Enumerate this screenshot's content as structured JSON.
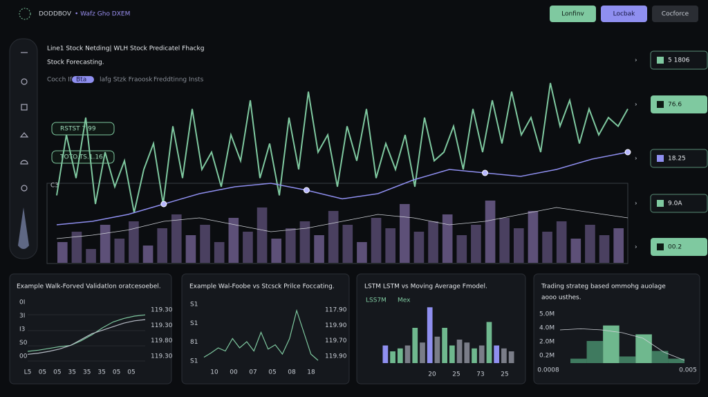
{
  "header": {
    "brand": "DODDBOV",
    "subtitle": "• Wafz Gho DXEM",
    "buttons": [
      "Lonfinv",
      "Locbak",
      "Cocforce"
    ]
  },
  "main": {
    "title": "Line1 Stock Netding| WLH Stock Predicatel Fhackg",
    "subtitle": "Stock Forecasting.",
    "legend": [
      "Cocch Ife:",
      "Bta",
      "lafg Stzk Fraoosk",
      "Freddtinng Insts"
    ],
    "badges": [
      "RSTST 7 99",
      "TOTO.TS.1.16"
    ],
    "axis_label": "C3",
    "stats": [
      "5 1806",
      "76.6",
      "18.25",
      "9.0A",
      "00.2"
    ],
    "ylim": [
      0,
      110
    ],
    "green": [
      35,
      70,
      45,
      80,
      30,
      60,
      40,
      55,
      25,
      50,
      65,
      30,
      75,
      45,
      85,
      50,
      60,
      40,
      70,
      55,
      90,
      45,
      65,
      35,
      80,
      50,
      95,
      60,
      70,
      40,
      75,
      55,
      85,
      45,
      65,
      50,
      70,
      40,
      80,
      55,
      60,
      75,
      50,
      85,
      60,
      90,
      65,
      95,
      70,
      80,
      60,
      100,
      75,
      90,
      65,
      85,
      70,
      80,
      75,
      85
    ],
    "purple": [
      18,
      20,
      24,
      30,
      36,
      40,
      42,
      38,
      33,
      36,
      44,
      50,
      48,
      46,
      50,
      56,
      60
    ],
    "white": [
      10,
      12,
      15,
      20,
      22,
      18,
      14,
      16,
      20,
      24,
      22,
      18,
      20,
      24,
      28,
      25,
      22
    ],
    "bar_ylim": [
      0,
      100
    ],
    "bars": [
      30,
      45,
      20,
      55,
      35,
      60,
      25,
      50,
      70,
      40,
      55,
      30,
      65,
      45,
      80,
      35,
      50,
      60,
      40,
      75,
      55,
      30,
      65,
      50,
      85,
      45,
      60,
      70,
      40,
      55,
      90,
      65,
      50,
      75,
      45,
      60,
      35,
      55,
      40,
      50
    ]
  },
  "panels": [
    {
      "title": "Example Walk-Forved Validatlon oratcesoebel.",
      "left": [
        "0I",
        "3I",
        "I3",
        "S0",
        "00"
      ],
      "right": [
        "119.30",
        "119.30",
        "119.80",
        "119.30"
      ],
      "bottom": [
        "L5",
        "05",
        "05",
        "35",
        "35",
        "35",
        "05",
        "05"
      ],
      "ylim": [
        0,
        100
      ],
      "series": [
        {
          "color": "#7fc9a0",
          "values": [
            20,
            22,
            25,
            28,
            30,
            38,
            48,
            60,
            70,
            76,
            80,
            82
          ]
        },
        {
          "color": "#b9bec8",
          "values": [
            15,
            17,
            20,
            24,
            30,
            40,
            50,
            56,
            62,
            68,
            72,
            74
          ]
        }
      ]
    },
    {
      "title": "Example Wal-Foobe vs Stcsck Prilce Foccating.",
      "left": [
        "S1",
        "S1",
        "81",
        "S1"
      ],
      "right": [
        "117.90",
        "119.90",
        "119.70",
        "119.90"
      ],
      "bottom": [
        "10",
        "00",
        "07",
        "05",
        "08",
        "18"
      ],
      "ylim": [
        0,
        100
      ],
      "series": [
        {
          "color": "#7fc9a0",
          "values": [
            15,
            22,
            30,
            25,
            45,
            30,
            40,
            25,
            55,
            28,
            35,
            20,
            45,
            90,
            55,
            20,
            10
          ]
        }
      ]
    },
    {
      "title": "LSTM LSTM vs Moving Average Fmodel.",
      "legend": [
        "LSS7M",
        "Mex"
      ],
      "bottom": [
        "20",
        "25",
        "73",
        "25"
      ],
      "ylim": [
        0,
        100
      ],
      "bars": [
        30,
        20,
        25,
        30,
        60,
        35,
        95,
        45,
        60,
        30,
        40,
        35,
        25,
        30,
        70,
        30,
        25,
        20
      ],
      "colors": [
        "#8f8ff0",
        "#6fb88e",
        "#6fb88e",
        "#7a7d88",
        "#6fb88e",
        "#7a7d88",
        "#8f8ff0",
        "#7a7d88",
        "#6fb88e",
        "#6fb88e",
        "#7a7d88",
        "#7a7d88",
        "#6fb88e",
        "#7a7d88",
        "#6fb88e",
        "#8f8ff0",
        "#7a7d88",
        "#7a7d88"
      ]
    },
    {
      "title": "Trading strateg based ommohg auolage",
      "title2": "aooo usthes.",
      "left": [
        "5.0M",
        "4.0M",
        "2.0M",
        "0.2M"
      ],
      "bottom": [
        "0.0008",
        "0.005"
      ],
      "ylim": [
        0,
        100
      ],
      "bars": [
        8,
        40,
        68,
        12,
        52,
        22,
        8
      ],
      "line": [
        60,
        62,
        60,
        55,
        45,
        20,
        5
      ]
    }
  ]
}
